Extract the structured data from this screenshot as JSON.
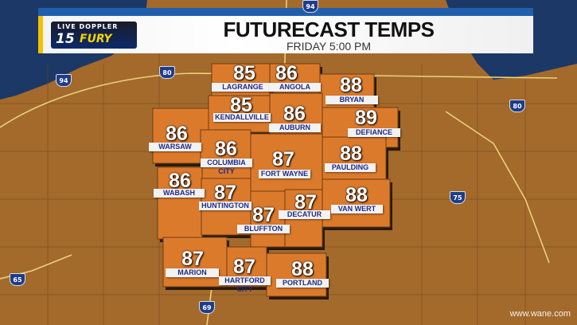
{
  "header": {
    "title": "FUTURECAST TEMPS",
    "subtitle": "FRIDAY  5:00 PM",
    "logo_line1": "LIVE DOPPLER",
    "logo_number": "15",
    "logo_word": "FURY"
  },
  "counties": [
    {
      "name": "LAGRANGE",
      "temp": "85"
    },
    {
      "name": "ANGOLA",
      "temp": "86"
    },
    {
      "name": "BRYAN",
      "temp": "88"
    },
    {
      "name": "KENDALLVILLE",
      "temp": "85"
    },
    {
      "name": "AUBURN",
      "temp": "86"
    },
    {
      "name": "DEFIANCE",
      "temp": "89"
    },
    {
      "name": "WARSAW",
      "temp": "86"
    },
    {
      "name": "COLUMBIA CITY",
      "temp": "86"
    },
    {
      "name": "FORT WAYNE",
      "temp": "87"
    },
    {
      "name": "PAULDING",
      "temp": "88"
    },
    {
      "name": "WABASH",
      "temp": "86"
    },
    {
      "name": "HUNTINGTON",
      "temp": "87"
    },
    {
      "name": "DECATUR",
      "temp": "87"
    },
    {
      "name": "VAN WERT",
      "temp": "88"
    },
    {
      "name": "BLUFFTON",
      "temp": "87"
    },
    {
      "name": "MARION",
      "temp": "87"
    },
    {
      "name": "HARTFORD CITY",
      "temp": "87"
    },
    {
      "name": "PORTLAND",
      "temp": "88"
    }
  ],
  "highways": [
    "94",
    "80",
    "94",
    "80",
    "75",
    "65",
    "69"
  ],
  "watermark": "www.wane.com",
  "colors": {
    "county": "#dc7a2c",
    "land": "#a36a2c",
    "lake": "#1c3866",
    "header_blue": "#1f5fae",
    "accent": "#f2c200",
    "label_text": "#1b2a8c"
  }
}
